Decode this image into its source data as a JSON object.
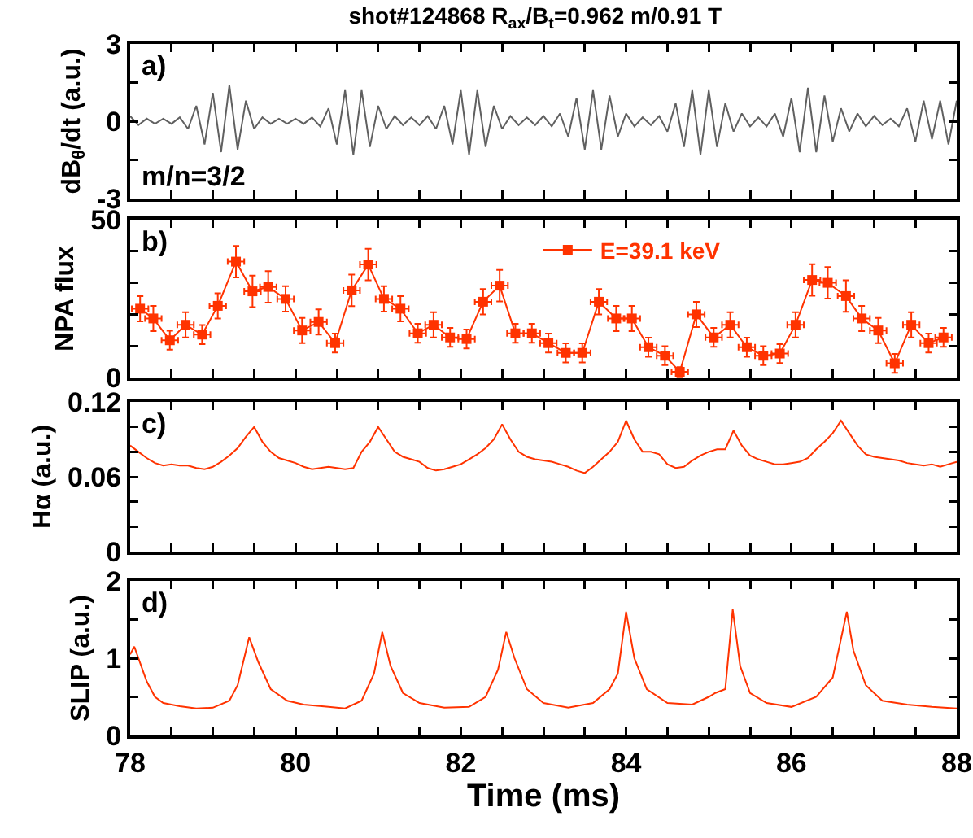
{
  "chart_data": [
    {
      "type": "line",
      "title": "shot#124868 R$_{ax}$/B$_{t}$=0.962 m/0.91 T",
      "ylabel": "dB$_{θ}$/dt (a.u.)",
      "annotations": [
        "a)",
        "m/n=3/2"
      ],
      "x": [
        78,
        78.1,
        78.2,
        78.3,
        78.4,
        78.5,
        78.6,
        78.7,
        78.8,
        78.9,
        79,
        79.1,
        79.2,
        79.3,
        79.4,
        79.5,
        79.6,
        79.7,
        79.8,
        79.9,
        80,
        80.1,
        80.2,
        80.3,
        80.4,
        80.5,
        80.6,
        80.7,
        80.8,
        80.9,
        81,
        81.1,
        81.2,
        81.3,
        81.4,
        81.5,
        81.6,
        81.7,
        81.8,
        81.9,
        82,
        82.1,
        82.2,
        82.3,
        82.4,
        82.5,
        82.6,
        82.7,
        82.8,
        82.9,
        83,
        83.1,
        83.2,
        83.3,
        83.4,
        83.5,
        83.6,
        83.7,
        83.8,
        83.9,
        84,
        84.1,
        84.2,
        84.3,
        84.4,
        84.5,
        84.6,
        84.7,
        84.8,
        84.9,
        85,
        85.1,
        85.2,
        85.3,
        85.4,
        85.5,
        85.6,
        85.7,
        85.8,
        85.9,
        86,
        86.1,
        86.2,
        86.3,
        86.4,
        86.5,
        86.6,
        86.7,
        86.8,
        86.9,
        87,
        87.1,
        87.2,
        87.3,
        87.4,
        87.5,
        87.6,
        87.7,
        87.8,
        87.9,
        88
      ],
      "series": [
        {
          "color": "#606060",
          "values": [
            0.2,
            -0.15,
            0.1,
            -0.1,
            0.1,
            -0.1,
            0.15,
            -0.3,
            0.6,
            -0.9,
            1.1,
            -1.2,
            1.4,
            -1.1,
            0.8,
            -0.3,
            0.15,
            -0.1,
            0.1,
            -0.1,
            0.1,
            -0.1,
            0.15,
            -0.2,
            0.5,
            -0.9,
            1.2,
            -1.3,
            1.2,
            -1.0,
            0.6,
            -0.3,
            0.2,
            -0.15,
            0.15,
            -0.15,
            0.2,
            -0.3,
            0.6,
            -0.9,
            1.2,
            -1.3,
            1.2,
            -1.0,
            0.6,
            -0.3,
            0.2,
            -0.15,
            0.15,
            -0.15,
            0.2,
            -0.2,
            0.3,
            -0.6,
            0.9,
            -1.1,
            1.2,
            -1.1,
            1.0,
            -0.6,
            0.3,
            -0.2,
            0.15,
            -0.15,
            0.2,
            -0.4,
            0.7,
            -1.0,
            1.2,
            -1.3,
            1.2,
            -1.0,
            0.7,
            -0.4,
            0.3,
            -0.2,
            0.15,
            -0.2,
            0.3,
            -0.6,
            0.9,
            -1.2,
            1.3,
            -1.2,
            1.0,
            -0.8,
            0.5,
            -0.4,
            0.3,
            -0.2,
            0.2,
            -0.15,
            0.1,
            -0.2,
            0.5,
            -0.8,
            0.8,
            -0.7,
            0.8,
            -0.9,
            0.8
          ]
        }
      ],
      "xlim": [
        78,
        88
      ],
      "xticks": [
        78,
        {
          "value": 78.5,
          "label": null
        },
        {
          "value": 79,
          "label": null
        },
        {
          "value": 79.5,
          "label": null
        },
        80,
        {
          "value": 80.5,
          "label": null
        },
        {
          "value": 81,
          "label": null
        },
        {
          "value": 81.5,
          "label": null
        },
        82,
        {
          "value": 82.5,
          "label": null
        },
        {
          "value": 83,
          "label": null
        },
        {
          "value": 83.5,
          "label": null
        },
        84,
        {
          "value": 84.5,
          "label": null
        },
        {
          "value": 85,
          "label": null
        },
        {
          "value": 85.5,
          "label": null
        },
        86,
        {
          "value": 86.5,
          "label": null
        },
        {
          "value": 87,
          "label": null
        },
        {
          "value": 87.5,
          "label": null
        },
        88
      ],
      "ylim": [
        -3,
        3
      ],
      "yticks": [
        -3,
        {
          "value": -1.5,
          "label": null
        },
        0,
        {
          "value": 1.5,
          "label": null
        },
        3
      ],
      "tick_labels": "y"
    },
    {
      "type": "line",
      "ylabel": "NPA flux",
      "annotations": [
        "b)"
      ],
      "marker": "square",
      "legend": "top",
      "x": [
        78.12,
        78.28,
        78.48,
        78.67,
        78.87,
        79.06,
        79.28,
        79.48,
        79.67,
        79.88,
        80.08,
        80.28,
        80.48,
        80.68,
        80.88,
        81.07,
        81.27,
        81.48,
        81.67,
        81.87,
        82.07,
        82.27,
        82.47,
        82.66,
        82.86,
        83.06,
        83.27,
        83.47,
        83.67,
        83.88,
        84.07,
        84.27,
        84.47,
        84.65,
        84.85,
        85.06,
        85.26,
        85.46,
        85.66,
        85.86,
        86.05,
        86.25,
        86.44,
        86.66,
        86.85,
        87.05,
        87.25,
        87.45,
        87.66,
        87.84
      ],
      "series": [
        {
          "name": "E=39.1 keV",
          "color": "#ff3300",
          "values": [
            21.8,
            18.7,
            11.8,
            16.7,
            13.6,
            22.7,
            36.7,
            27.3,
            28.7,
            24.9,
            14.9,
            17.6,
            10.9,
            27.6,
            35.8,
            24.9,
            21.8,
            14,
            16.7,
            12.7,
            12.2,
            24,
            29.1,
            14,
            14,
            10.9,
            7.8,
            7.8,
            24,
            18.7,
            18.7,
            9.6,
            6.9,
            1.8,
            20,
            12.7,
            16.7,
            9.6,
            6.9,
            7.6,
            16.7,
            30.9,
            30,
            25.8,
            18.7,
            14.9,
            4.5,
            16.7,
            10.9,
            12.7
          ],
          "errors": [
            4,
            4,
            3,
            4,
            3,
            4,
            5,
            5,
            5,
            4,
            4,
            4,
            3,
            5,
            5,
            4,
            4,
            3,
            4,
            3,
            3,
            4,
            5,
            3,
            3,
            3,
            3,
            3,
            4,
            4,
            4,
            3,
            3,
            1.5,
            4,
            3,
            4,
            3,
            3,
            3,
            4,
            5,
            5,
            5,
            4,
            4,
            3,
            4,
            3,
            3
          ],
          "xerrors": [
            0.1,
            0.1,
            0.1,
            0.1,
            0.1,
            0.1,
            0.1,
            0.1,
            0.1,
            0.1,
            0.1,
            0.1,
            0.1,
            0.1,
            0.1,
            0.1,
            0.1,
            0.1,
            0.1,
            0.1,
            0.1,
            0.1,
            0.1,
            0.1,
            0.1,
            0.1,
            0.1,
            0.1,
            0.1,
            0.1,
            0.1,
            0.1,
            0.1,
            0.1,
            0.1,
            0.1,
            0.1,
            0.1,
            0.1,
            0.1,
            0.1,
            0.1,
            0.1,
            0.1,
            0.1,
            0.1,
            0.1,
            0.1,
            0.1,
            0.1
          ]
        }
      ],
      "xlim": [
        78,
        88
      ],
      "xticks": [
        78,
        {
          "value": 78.5,
          "label": null
        },
        {
          "value": 79,
          "label": null
        },
        {
          "value": 79.5,
          "label": null
        },
        80,
        {
          "value": 80.5,
          "label": null
        },
        {
          "value": 81,
          "label": null
        },
        {
          "value": 81.5,
          "label": null
        },
        82,
        {
          "value": 82.5,
          "label": null
        },
        {
          "value": 83,
          "label": null
        },
        {
          "value": 83.5,
          "label": null
        },
        84,
        {
          "value": 84.5,
          "label": null
        },
        {
          "value": 85,
          "label": null
        },
        {
          "value": 85.5,
          "label": null
        },
        86,
        {
          "value": 86.5,
          "label": null
        },
        {
          "value": 87,
          "label": null
        },
        {
          "value": 87.5,
          "label": null
        },
        88
      ],
      "ylim": [
        0,
        50
      ],
      "yticks": [
        0,
        {
          "value": 10,
          "label": null
        },
        {
          "value": 20,
          "label": null
        },
        {
          "value": 30,
          "label": null
        },
        {
          "value": 40,
          "label": null
        },
        50
      ],
      "tick_labels": "y"
    },
    {
      "type": "line",
      "ylabel": "Hα (a.u.)",
      "annotations": [
        "c)"
      ],
      "x": [
        78,
        78.1,
        78.2,
        78.3,
        78.4,
        78.5,
        78.6,
        78.7,
        78.8,
        78.9,
        79,
        79.1,
        79.2,
        79.3,
        79.4,
        79.5,
        79.6,
        79.7,
        79.8,
        79.9,
        80,
        80.1,
        80.2,
        80.3,
        80.4,
        80.5,
        80.6,
        80.7,
        80.8,
        80.9,
        81,
        81.1,
        81.2,
        81.3,
        81.4,
        81.5,
        81.6,
        81.7,
        81.8,
        81.9,
        82,
        82.1,
        82.2,
        82.3,
        82.4,
        82.5,
        82.6,
        82.7,
        82.8,
        82.9,
        83,
        83.1,
        83.2,
        83.3,
        83.4,
        83.5,
        83.6,
        83.7,
        83.8,
        83.9,
        84,
        84.1,
        84.2,
        84.3,
        84.4,
        84.5,
        84.6,
        84.7,
        84.8,
        84.9,
        85,
        85.1,
        85.2,
        85.3,
        85.4,
        85.5,
        85.6,
        85.7,
        85.8,
        85.9,
        86,
        86.1,
        86.2,
        86.3,
        86.4,
        86.5,
        86.6,
        86.7,
        86.8,
        86.9,
        87,
        87.1,
        87.2,
        87.3,
        87.4,
        87.5,
        87.6,
        87.7,
        87.8,
        87.9,
        88
      ],
      "series": [
        {
          "color": "#ff3300",
          "values": [
            0.085,
            0.08,
            0.075,
            0.071,
            0.069,
            0.07,
            0.069,
            0.069,
            0.067,
            0.066,
            0.068,
            0.072,
            0.077,
            0.083,
            0.092,
            0.1,
            0.088,
            0.08,
            0.075,
            0.073,
            0.071,
            0.068,
            0.066,
            0.067,
            0.068,
            0.067,
            0.066,
            0.067,
            0.08,
            0.088,
            0.1,
            0.09,
            0.08,
            0.076,
            0.074,
            0.072,
            0.067,
            0.065,
            0.066,
            0.068,
            0.07,
            0.074,
            0.078,
            0.083,
            0.09,
            0.102,
            0.09,
            0.08,
            0.076,
            0.074,
            0.073,
            0.072,
            0.07,
            0.068,
            0.065,
            0.063,
            0.068,
            0.074,
            0.08,
            0.088,
            0.105,
            0.09,
            0.08,
            0.08,
            0.078,
            0.07,
            0.067,
            0.068,
            0.073,
            0.077,
            0.08,
            0.082,
            0.082,
            0.097,
            0.085,
            0.077,
            0.074,
            0.072,
            0.07,
            0.07,
            0.071,
            0.072,
            0.075,
            0.082,
            0.088,
            0.095,
            0.105,
            0.095,
            0.085,
            0.078,
            0.076,
            0.075,
            0.074,
            0.073,
            0.071,
            0.07,
            0.069,
            0.07,
            0.068,
            0.07,
            0.072
          ]
        }
      ],
      "xlim": [
        78,
        88
      ],
      "xticks": [
        78,
        {
          "value": 78.5,
          "label": null
        },
        {
          "value": 79,
          "label": null
        },
        {
          "value": 79.5,
          "label": null
        },
        80,
        {
          "value": 80.5,
          "label": null
        },
        {
          "value": 81,
          "label": null
        },
        {
          "value": 81.5,
          "label": null
        },
        82,
        {
          "value": 82.5,
          "label": null
        },
        {
          "value": 83,
          "label": null
        },
        {
          "value": 83.5,
          "label": null
        },
        84,
        {
          "value": 84.5,
          "label": null
        },
        {
          "value": 85,
          "label": null
        },
        {
          "value": 85.5,
          "label": null
        },
        86,
        {
          "value": 86.5,
          "label": null
        },
        {
          "value": 87,
          "label": null
        },
        {
          "value": 87.5,
          "label": null
        },
        88
      ],
      "ylim": [
        0,
        0.12
      ],
      "yticks": [
        0,
        {
          "value": 0.02,
          "label": null
        },
        {
          "value": 0.04,
          "label": null
        },
        0.06,
        {
          "value": 0.08,
          "label": null
        },
        {
          "value": 0.1,
          "label": null
        },
        0.12
      ],
      "tick_labels": "y"
    },
    {
      "type": "line",
      "ylabel": "SLIP (a.u.)",
      "xlabel": "Time (ms)",
      "annotations": [
        "d)"
      ],
      "x": [
        78,
        78.05,
        78.1,
        78.2,
        78.3,
        78.4,
        78.6,
        78.8,
        79,
        79.2,
        79.3,
        79.44,
        79.55,
        79.7,
        79.9,
        80.1,
        80.4,
        80.6,
        80.8,
        80.95,
        81.05,
        81.15,
        81.3,
        81.5,
        81.8,
        82.1,
        82.3,
        82.45,
        82.55,
        82.65,
        82.8,
        83,
        83.3,
        83.6,
        83.8,
        83.9,
        84,
        84.1,
        84.25,
        84.5,
        84.8,
        85,
        85.08,
        85.2,
        85.29,
        85.38,
        85.5,
        85.7,
        86,
        86.3,
        86.5,
        86.67,
        86.75,
        86.9,
        87.1,
        87.4,
        87.7,
        88
      ],
      "series": [
        {
          "color": "#ff3300",
          "values": [
            1.05,
            1.15,
            1.0,
            0.7,
            0.5,
            0.42,
            0.38,
            0.35,
            0.36,
            0.45,
            0.65,
            1.27,
            0.95,
            0.6,
            0.45,
            0.4,
            0.37,
            0.35,
            0.45,
            0.8,
            1.34,
            0.9,
            0.55,
            0.42,
            0.36,
            0.37,
            0.5,
            0.85,
            1.34,
            1.0,
            0.6,
            0.42,
            0.36,
            0.42,
            0.6,
            0.8,
            1.6,
            1.0,
            0.6,
            0.42,
            0.4,
            0.5,
            0.55,
            0.6,
            1.63,
            0.9,
            0.55,
            0.42,
            0.37,
            0.5,
            0.75,
            1.6,
            1.1,
            0.65,
            0.45,
            0.4,
            0.37,
            0.35
          ]
        }
      ],
      "xlim": [
        78,
        88
      ],
      "xticks": [
        78,
        {
          "value": 78.5,
          "label": null
        },
        {
          "value": 79,
          "label": null
        },
        {
          "value": 79.5,
          "label": null
        },
        80,
        {
          "value": 80.5,
          "label": null
        },
        {
          "value": 81,
          "label": null
        },
        {
          "value": 81.5,
          "label": null
        },
        82,
        {
          "value": 82.5,
          "label": null
        },
        {
          "value": 83,
          "label": null
        },
        {
          "value": 83.5,
          "label": null
        },
        84,
        {
          "value": 84.5,
          "label": null
        },
        {
          "value": 85,
          "label": null
        },
        {
          "value": 85.5,
          "label": null
        },
        86,
        {
          "value": 86.5,
          "label": null
        },
        {
          "value": 87,
          "label": null
        },
        {
          "value": 87.5,
          "label": null
        },
        88
      ],
      "ylim": [
        0,
        2
      ],
      "yticks": [
        0,
        {
          "value": 0.5,
          "label": null
        },
        1,
        {
          "value": 1.5,
          "label": null
        },
        2
      ]
    }
  ]
}
